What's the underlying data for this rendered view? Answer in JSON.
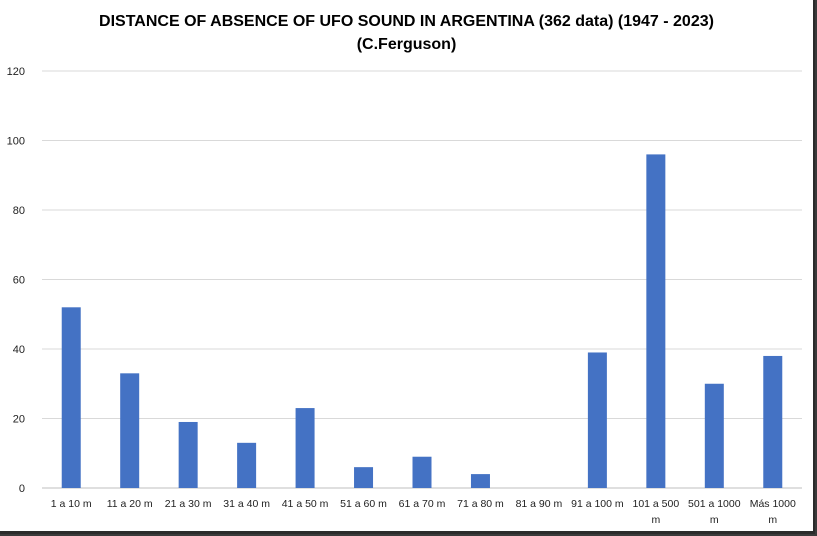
{
  "chart_data": {
    "type": "bar",
    "title": "DISTANCE OF ABSENCE OF UFO SOUND IN ARGENTINA (362 data) (1947 - 2023)",
    "subtitle": "(C.Ferguson)",
    "xlabel": "",
    "ylabel": "",
    "categories": [
      [
        "1 a 10 m"
      ],
      [
        "11 a 20 m"
      ],
      [
        "21 a 30 m"
      ],
      [
        "31 a 40 m"
      ],
      [
        "41 a 50 m"
      ],
      [
        "51 a 60 m"
      ],
      [
        "61 a 70 m"
      ],
      [
        "71 a 80 m"
      ],
      [
        "81 a 90 m"
      ],
      [
        "91 a 100 m"
      ],
      [
        "101 a 500",
        "m"
      ],
      [
        "501 a 1000",
        "m"
      ],
      [
        "Más 1000",
        "m"
      ]
    ],
    "values": [
      52,
      33,
      19,
      13,
      23,
      6,
      9,
      4,
      0,
      39,
      96,
      30,
      38
    ],
    "ylim": [
      0,
      120
    ],
    "yticks": [
      0,
      20,
      40,
      60,
      80,
      100,
      120
    ],
    "grid": true,
    "legend": "none",
    "colors": {
      "bar": "#4472C4",
      "grid": "#d9d9d9",
      "axis": "#bfbfbf"
    }
  }
}
